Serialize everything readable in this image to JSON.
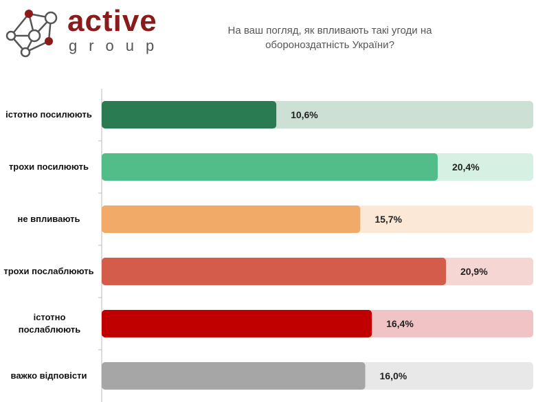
{
  "logo": {
    "line1": "active",
    "line2": "group"
  },
  "chart_data": {
    "type": "bar",
    "orientation": "horizontal",
    "title": "На ваш погляд, як впливають такі угоди на обороноздатність України?",
    "categories": [
      "істотно посилюють",
      "трохи посилюють",
      "не впливають",
      "трохи послаблюють",
      "істотно послаблюють",
      "важко відповісти"
    ],
    "values": [
      10.6,
      20.4,
      15.7,
      20.9,
      16.4,
      16.0
    ],
    "labels": [
      "10,6%",
      "20,4%",
      "15,7%",
      "20,9%",
      "16,4%",
      "16,0%"
    ],
    "colors": [
      "#2a7a52",
      "#52bd88",
      "#f2aa68",
      "#d45c4a",
      "#c00000",
      "#a6a6a6"
    ],
    "bg_colors": [
      "#cde0d6",
      "#d6f1e3",
      "#fce8d6",
      "#f5d6d2",
      "#f0c4c4",
      "#e8e8e8"
    ],
    "xlim": [
      0,
      26.2
    ],
    "xlabel": "",
    "ylabel": "",
    "grid": false
  }
}
